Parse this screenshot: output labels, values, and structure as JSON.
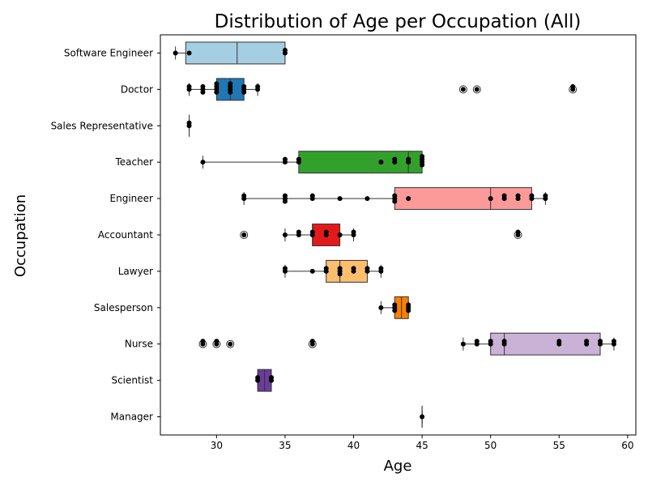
{
  "chart_data": {
    "type": "box",
    "orientation": "horizontal",
    "title": "Distribution of Age per Occupation (All)",
    "xlabel": "Age",
    "ylabel": "Occupation",
    "xlim": [
      25.9,
      60.6
    ],
    "x_ticks": [
      30,
      35,
      40,
      45,
      50,
      55,
      60
    ],
    "grid": false,
    "legend": "none",
    "categories": [
      "Software Engineer",
      "Doctor",
      "Sales Representative",
      "Teacher",
      "Engineer",
      "Accountant",
      "Lawyer",
      "Salesperson",
      "Nurse",
      "Scientist",
      "Manager"
    ],
    "boxes": [
      {
        "name": "Software Engineer",
        "color": "#a6cee3",
        "q1": 27.75,
        "median": 31.5,
        "q3": 35,
        "whisker_low": 27,
        "whisker_high": 35,
        "outliers": [],
        "points": [
          27,
          28,
          35,
          35
        ]
      },
      {
        "name": "Doctor",
        "color": "#1f78b4",
        "q1": 30,
        "median": 31,
        "q3": 32,
        "whisker_low": 28,
        "whisker_high": 33,
        "outliers": [
          48,
          49,
          56
        ],
        "points": [
          28,
          28,
          29,
          29,
          29,
          30,
          30,
          30,
          30,
          31,
          31,
          31,
          31,
          32,
          32,
          32,
          33,
          33,
          48,
          49,
          56,
          56
        ]
      },
      {
        "name": "Sales Representative",
        "color": "#b2df8a",
        "q1": 28,
        "median": 28,
        "q3": 28,
        "whisker_low": 28,
        "whisker_high": 28,
        "outliers": [],
        "points": [
          28,
          28
        ]
      },
      {
        "name": "Teacher",
        "color": "#33a02c",
        "q1": 36,
        "median": 44,
        "q3": 45,
        "whisker_low": 29,
        "whisker_high": 45,
        "outliers": [],
        "points": [
          29,
          35,
          35,
          36,
          36,
          42,
          43,
          43,
          44,
          44,
          45,
          45,
          45,
          45
        ]
      },
      {
        "name": "Engineer",
        "color": "#fb9a99",
        "q1": 43,
        "median": 50,
        "q3": 53,
        "whisker_low": 32,
        "whisker_high": 54,
        "outliers": [],
        "points": [
          32,
          32,
          35,
          35,
          35,
          37,
          37,
          39,
          41,
          43,
          43,
          43,
          44,
          50,
          51,
          51,
          52,
          52,
          53,
          53,
          54,
          54
        ]
      },
      {
        "name": "Accountant",
        "color": "#e31a1c",
        "q1": 37,
        "median": 37,
        "q3": 39,
        "whisker_low": 35,
        "whisker_high": 40,
        "outliers": [
          32,
          52
        ],
        "points": [
          32,
          35,
          36,
          36,
          37,
          37,
          38,
          38,
          39,
          40,
          40,
          52,
          52
        ]
      },
      {
        "name": "Lawyer",
        "color": "#fdbf6f",
        "q1": 38,
        "median": 39,
        "q3": 41,
        "whisker_low": 35,
        "whisker_high": 42,
        "outliers": [],
        "points": [
          35,
          35,
          37,
          38,
          38,
          39,
          39,
          39,
          40,
          40,
          41,
          41,
          42,
          42
        ]
      },
      {
        "name": "Salesperson",
        "color": "#ff7f00",
        "q1": 43,
        "median": 43.5,
        "q3": 44,
        "whisker_low": 42,
        "whisker_high": 44,
        "outliers": [],
        "points": [
          42,
          43,
          43,
          43,
          44,
          44,
          44
        ]
      },
      {
        "name": "Nurse",
        "color": "#cab2d6",
        "q1": 50,
        "median": 51,
        "q3": 58,
        "whisker_low": 48,
        "whisker_high": 59,
        "outliers": [
          29,
          30,
          31,
          37
        ],
        "points": [
          29,
          29,
          30,
          30,
          31,
          37,
          37,
          48,
          49,
          49,
          50,
          50,
          51,
          51,
          55,
          55,
          57,
          57,
          58,
          58,
          59,
          59
        ]
      },
      {
        "name": "Scientist",
        "color": "#6a3d9a",
        "q1": 33,
        "median": 33.5,
        "q3": 34,
        "whisker_low": 33,
        "whisker_high": 34,
        "outliers": [],
        "points": [
          33,
          33,
          34,
          34
        ]
      },
      {
        "name": "Manager",
        "color": "#ffff99",
        "q1": 45,
        "median": 45,
        "q3": 45,
        "whisker_low": 45,
        "whisker_high": 45,
        "outliers": [],
        "points": [
          45
        ]
      }
    ]
  }
}
